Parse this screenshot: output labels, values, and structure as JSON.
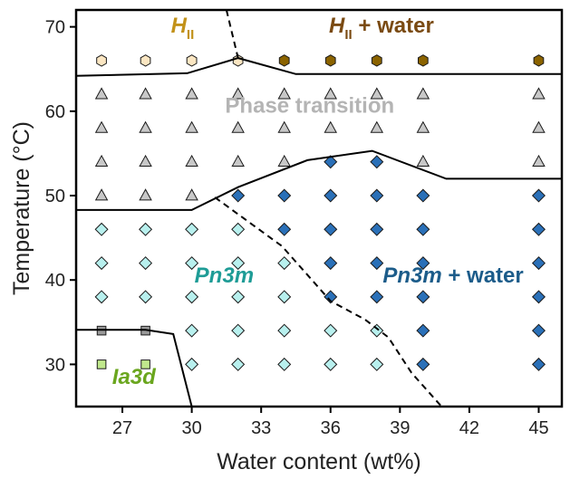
{
  "chart_data": {
    "type": "scatter",
    "xlabel": "Water content (wt%)",
    "ylabel": "Temperature (°C)",
    "xlim": [
      25,
      46
    ],
    "ylim": [
      25,
      72
    ],
    "x_ticks": [
      27,
      30,
      33,
      36,
      39,
      42,
      45
    ],
    "y_ticks": [
      30,
      40,
      50,
      60,
      70
    ],
    "colors": {
      "HII": "#fbe6c2",
      "HII_water": "#8b6300",
      "transition": "#c8c8c8",
      "Pn3m": "#b8f0ee",
      "Pn3m_water": "#2a70b8",
      "Ia3d": "#c0e88c",
      "Ia3d_trans": "#9a9a9a"
    },
    "series": [
      {
        "key": "HII",
        "marker": "hexagon",
        "points": [
          [
            26.1,
            66
          ],
          [
            28,
            66
          ],
          [
            30,
            66
          ],
          [
            32,
            66
          ]
        ]
      },
      {
        "key": "HII_water",
        "marker": "hexagon",
        "points": [
          [
            34,
            66
          ],
          [
            36,
            66
          ],
          [
            38,
            66
          ],
          [
            40,
            66
          ],
          [
            45,
            66
          ]
        ]
      },
      {
        "key": "transition",
        "marker": "triangle",
        "points": [
          [
            26.1,
            62
          ],
          [
            28,
            62
          ],
          [
            30,
            62
          ],
          [
            32,
            62
          ],
          [
            34,
            62
          ],
          [
            36,
            62
          ],
          [
            38,
            62
          ],
          [
            40,
            62
          ],
          [
            45,
            62
          ],
          [
            26.1,
            58
          ],
          [
            28,
            58
          ],
          [
            30,
            58
          ],
          [
            32,
            58
          ],
          [
            34,
            58
          ],
          [
            36,
            58
          ],
          [
            38,
            58
          ],
          [
            40,
            58
          ],
          [
            45,
            58
          ],
          [
            26.1,
            54
          ],
          [
            28,
            54
          ],
          [
            30,
            54
          ],
          [
            32,
            54
          ],
          [
            34,
            54
          ],
          [
            40,
            54
          ],
          [
            45,
            54
          ],
          [
            26.1,
            50
          ],
          [
            28,
            50
          ],
          [
            30,
            50
          ]
        ]
      },
      {
        "key": "Pn3m",
        "marker": "diamond",
        "points": [
          [
            26.1,
            46
          ],
          [
            28,
            46
          ],
          [
            30,
            46
          ],
          [
            32,
            46
          ],
          [
            26.1,
            42
          ],
          [
            28,
            42
          ],
          [
            30,
            42
          ],
          [
            32,
            42
          ],
          [
            34,
            42
          ],
          [
            26.1,
            38
          ],
          [
            28,
            38
          ],
          [
            30,
            38
          ],
          [
            32,
            38
          ],
          [
            34,
            38
          ],
          [
            30,
            34
          ],
          [
            32,
            34
          ],
          [
            34,
            34
          ],
          [
            36,
            34
          ],
          [
            38,
            34
          ],
          [
            30,
            30
          ],
          [
            32,
            30
          ],
          [
            34,
            30
          ],
          [
            36,
            30
          ],
          [
            38,
            30
          ]
        ]
      },
      {
        "key": "Pn3m_water",
        "marker": "diamond",
        "points": [
          [
            36,
            54
          ],
          [
            38,
            54
          ],
          [
            32,
            50
          ],
          [
            34,
            50
          ],
          [
            36,
            50
          ],
          [
            38,
            50
          ],
          [
            40,
            50
          ],
          [
            45,
            50
          ],
          [
            34,
            46
          ],
          [
            36,
            46
          ],
          [
            38,
            46
          ],
          [
            40,
            46
          ],
          [
            45,
            46
          ],
          [
            36,
            42
          ],
          [
            38,
            42
          ],
          [
            40,
            42
          ],
          [
            45,
            42
          ],
          [
            36,
            38
          ],
          [
            38,
            38
          ],
          [
            40,
            38
          ],
          [
            45,
            38
          ],
          [
            40,
            34
          ],
          [
            45,
            34
          ],
          [
            40,
            30
          ],
          [
            45,
            30
          ]
        ]
      },
      {
        "key": "Ia3d_trans",
        "marker": "square",
        "points": [
          [
            26.1,
            34
          ],
          [
            28,
            34
          ]
        ]
      },
      {
        "key": "Ia3d",
        "marker": "square",
        "points": [
          [
            26.1,
            30
          ],
          [
            28,
            30
          ]
        ]
      }
    ],
    "boundaries_solid": [
      [
        [
          25,
          64.2
        ],
        [
          29.8,
          64.5
        ],
        [
          32,
          66.3
        ],
        [
          34.5,
          64.4
        ],
        [
          46,
          64.4
        ]
      ],
      [
        [
          25,
          48.3
        ],
        [
          30,
          48.3
        ],
        [
          32,
          51
        ],
        [
          35,
          54.2
        ],
        [
          37.8,
          55.3
        ],
        [
          41,
          52
        ],
        [
          46,
          52
        ]
      ],
      [
        [
          25,
          34.1
        ],
        [
          28,
          34.1
        ],
        [
          29.2,
          33.6
        ],
        [
          30,
          25
        ]
      ]
    ],
    "boundaries_dashed": [
      [
        [
          31.5,
          72
        ],
        [
          32,
          66.3
        ]
      ],
      [
        [
          31,
          49.8
        ],
        [
          33.9,
          44
        ],
        [
          36,
          37.5
        ],
        [
          37.5,
          35.3
        ],
        [
          38.5,
          33.2
        ],
        [
          39.5,
          29
        ],
        [
          40.8,
          25
        ]
      ]
    ],
    "annotations": [
      {
        "key": "HII",
        "main": "H",
        "sub": "II",
        "suffix": "",
        "x": 29.6,
        "y": 69.3,
        "color": "#c2921a"
      },
      {
        "key": "HII_water",
        "main": "H",
        "sub": "II",
        "suffix": " + water",
        "x": 38.2,
        "y": 69.3,
        "color": "#7a4a12"
      },
      {
        "key": "transition",
        "text": "Phase transition",
        "x": 35.1,
        "y": 59.8,
        "color": "#b4b4b4"
      },
      {
        "key": "Pn3m",
        "text": "Pn3m",
        "x": 31.4,
        "y": 39.7,
        "color": "#1e9c96"
      },
      {
        "key": "Pn3m_water",
        "text": "Pn3m",
        "suffix": " + water",
        "x": 41.3,
        "y": 39.7,
        "color": "#1c5c8a"
      },
      {
        "key": "Ia3d",
        "text": "Ia3d",
        "x": 27.5,
        "y": 27.7,
        "color": "#6aa61e"
      }
    ]
  }
}
